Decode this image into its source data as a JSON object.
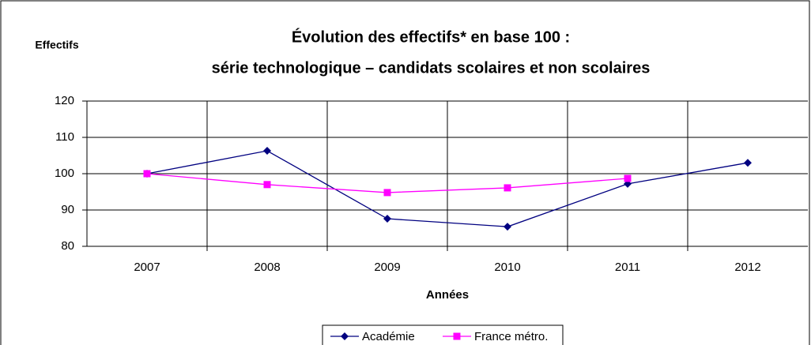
{
  "chart_data": {
    "type": "line",
    "title": [
      "Évolution des effectifs* en base 100 :",
      "série technologique – candidats scolaires et non scolaires"
    ],
    "y_label": "Effectifs",
    "x_label": "Années",
    "categories": [
      "2007",
      "2008",
      "2009",
      "2010",
      "2011",
      "2012"
    ],
    "series": [
      {
        "name": "Académie",
        "color": "#000080",
        "marker": "diamond",
        "values": [
          100,
          106.3,
          87.6,
          85.4,
          97.2,
          103
        ]
      },
      {
        "name": "France métro.",
        "color": "#ff00ff",
        "marker": "square",
        "values": [
          100,
          97,
          94.8,
          96.1,
          98.7,
          null
        ]
      }
    ],
    "ylim": [
      80,
      120
    ],
    "yticks": [
      80,
      90,
      100,
      110,
      120
    ],
    "grid": true
  }
}
